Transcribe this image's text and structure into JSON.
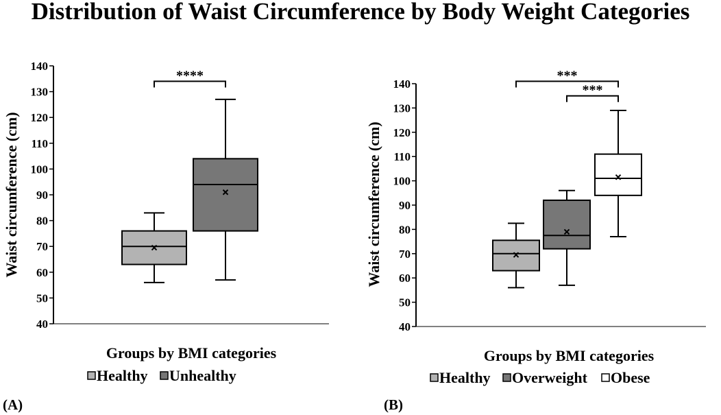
{
  "title": "Distribution of Waist Circumference by Body Weight Categories",
  "chart_data": [
    {
      "type": "box",
      "panel_label": "(A)",
      "ylabel": "Waist circumference (cm)",
      "xlabel": "Groups by BMI categories",
      "ylim": [
        40,
        140
      ],
      "yticks": [
        40,
        50,
        60,
        70,
        80,
        90,
        100,
        110,
        120,
        130,
        140
      ],
      "series": [
        {
          "name": "Healthy",
          "color": "#b3b3b3",
          "min": 56,
          "q1": 63,
          "median": 70,
          "q3": 76,
          "max": 83,
          "mean": 69.5
        },
        {
          "name": "Unhealthy",
          "color": "#777777",
          "min": 57,
          "q1": 76,
          "median": 94,
          "q3": 104,
          "max": 127,
          "mean": 91
        }
      ],
      "legend": [
        "Healthy",
        "Unhealthy"
      ],
      "significance": [
        {
          "from": 0,
          "to": 1,
          "label": "****",
          "y": 134
        }
      ]
    },
    {
      "type": "box",
      "panel_label": "(B)",
      "ylabel": "Waist circumference (cm)",
      "xlabel": "Groups by BMI categories",
      "ylim": [
        40,
        140
      ],
      "yticks": [
        40,
        50,
        60,
        70,
        80,
        90,
        100,
        110,
        120,
        130,
        140
      ],
      "series": [
        {
          "name": "Healthy",
          "color": "#b3b3b3",
          "min": 56,
          "q1": 63,
          "median": 70,
          "q3": 75.5,
          "max": 82.5,
          "mean": 69.5
        },
        {
          "name": "Overweight",
          "color": "#777777",
          "min": 57,
          "q1": 72,
          "median": 77.5,
          "q3": 92,
          "max": 96,
          "mean": 79
        },
        {
          "name": "Obese",
          "color": "#ffffff",
          "min": 77,
          "q1": 94,
          "median": 101,
          "q3": 111,
          "max": 129,
          "mean": 101.5
        }
      ],
      "legend": [
        "Healthy",
        "Overweight",
        "Obese"
      ],
      "significance": [
        {
          "from": 0,
          "to": 2,
          "label": "***",
          "y": 141
        },
        {
          "from": 1,
          "to": 2,
          "label": "***",
          "y": 135
        }
      ]
    }
  ]
}
